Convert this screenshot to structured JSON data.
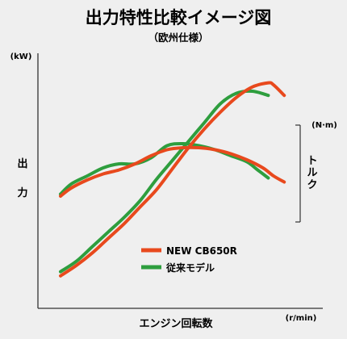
{
  "chart_data": {
    "type": "line",
    "title": "出力特性比較イメージ図",
    "subtitle": "（欧州仕様）",
    "left_axis": {
      "label_chars": [
        "出",
        "力"
      ],
      "unit": "(kW)"
    },
    "right_axis": {
      "label_chars": [
        "ト",
        "ル",
        "ク"
      ],
      "unit": "(N·m)"
    },
    "x_axis": {
      "label": "エンジン回転数",
      "unit": "(r/min)"
    },
    "grid": false,
    "legend_position": "lower-center",
    "series": [
      {
        "name": "NEW CB650R",
        "color": "#e8491d",
        "power": [
          [
            0,
            2
          ],
          [
            3,
            7
          ],
          [
            6,
            13
          ],
          [
            9,
            20
          ],
          [
            12,
            27
          ],
          [
            15,
            35
          ],
          [
            18,
            43
          ],
          [
            21,
            53
          ],
          [
            24,
            63
          ],
          [
            27,
            72
          ],
          [
            30,
            80
          ],
          [
            33,
            87
          ],
          [
            36,
            92
          ],
          [
            39,
            94
          ],
          [
            40,
            93
          ],
          [
            42,
            88
          ]
        ],
        "torque": [
          [
            0,
            70
          ],
          [
            2,
            74
          ],
          [
            5,
            78
          ],
          [
            8,
            81
          ],
          [
            11,
            83
          ],
          [
            14,
            86
          ],
          [
            17,
            90
          ],
          [
            20,
            93
          ],
          [
            23,
            94
          ],
          [
            26,
            94
          ],
          [
            29,
            93
          ],
          [
            32,
            91
          ],
          [
            35,
            88
          ],
          [
            38,
            84
          ],
          [
            40,
            80
          ],
          [
            42,
            77
          ]
        ]
      },
      {
        "name": "従来モデル",
        "color": "#2e9e3e",
        "power": [
          [
            0,
            4
          ],
          [
            3,
            9
          ],
          [
            6,
            16
          ],
          [
            9,
            23
          ],
          [
            12,
            30
          ],
          [
            15,
            38
          ],
          [
            18,
            48
          ],
          [
            21,
            57
          ],
          [
            24,
            66
          ],
          [
            27,
            75
          ],
          [
            30,
            84
          ],
          [
            33,
            89
          ],
          [
            36,
            90
          ],
          [
            39,
            88
          ]
        ],
        "torque": [
          [
            0,
            71
          ],
          [
            2,
            76
          ],
          [
            5,
            80
          ],
          [
            8,
            84
          ],
          [
            11,
            86
          ],
          [
            14,
            86
          ],
          [
            17,
            89
          ],
          [
            20,
            95
          ],
          [
            23,
            96
          ],
          [
            26,
            95
          ],
          [
            29,
            93
          ],
          [
            32,
            90
          ],
          [
            35,
            87
          ],
          [
            37,
            83
          ],
          [
            39,
            79
          ]
        ]
      }
    ]
  }
}
